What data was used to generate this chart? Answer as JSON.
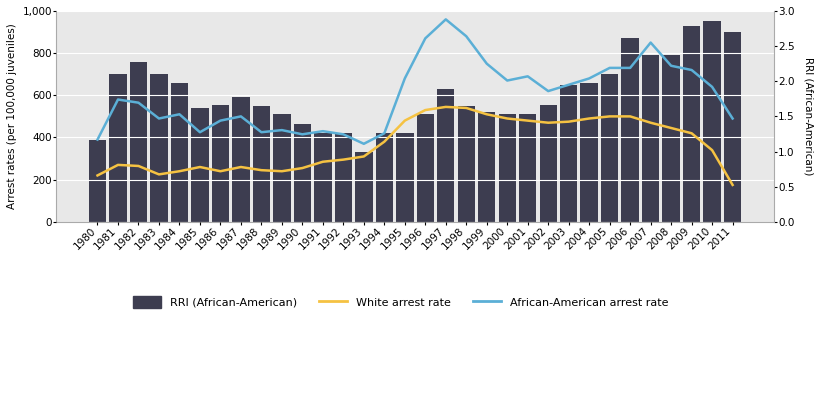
{
  "years": [
    1980,
    1981,
    1982,
    1983,
    1984,
    1985,
    1986,
    1987,
    1988,
    1989,
    1990,
    1991,
    1992,
    1993,
    1994,
    1995,
    1996,
    1997,
    1998,
    1999,
    2000,
    2001,
    2002,
    2003,
    2004,
    2005,
    2006,
    2007,
    2008,
    2009,
    2010,
    2011
  ],
  "rri_bars": [
    390,
    700,
    760,
    700,
    660,
    540,
    555,
    590,
    550,
    510,
    465,
    420,
    420,
    330,
    420,
    420,
    510,
    630,
    550,
    520,
    510,
    510,
    555,
    650,
    660,
    700,
    870,
    790,
    790,
    930,
    950,
    900
  ],
  "white_arrest_rate": [
    220,
    270,
    265,
    225,
    240,
    260,
    240,
    260,
    245,
    240,
    255,
    285,
    295,
    310,
    380,
    480,
    530,
    545,
    540,
    510,
    490,
    480,
    470,
    475,
    490,
    500,
    500,
    470,
    445,
    420,
    340,
    175
  ],
  "aa_arrest_rate": [
    390,
    580,
    565,
    490,
    510,
    425,
    480,
    500,
    425,
    435,
    415,
    430,
    415,
    370,
    420,
    680,
    870,
    960,
    880,
    750,
    670,
    690,
    620,
    650,
    680,
    730,
    730,
    850,
    740,
    720,
    640,
    490
  ],
  "bar_color": "#3d3d50",
  "white_line_color": "#f5c242",
  "aa_line_color": "#5bafd6",
  "ylabel_left": "Arrest rates (per 100,000 juveniles)",
  "ylabel_right": "RRI (African-American)",
  "ylim_left": [
    0,
    1000
  ],
  "ylim_right": [
    0.0,
    3.0
  ],
  "yticks_left": [
    0,
    200,
    400,
    600,
    800,
    1000
  ],
  "yticks_right": [
    0.0,
    0.5,
    1.0,
    1.5,
    2.0,
    2.5,
    3.0
  ],
  "legend_labels": [
    "RRI (African-American)",
    "White arrest rate",
    "African-American arrest rate"
  ],
  "bg_color": "#e8e8e8",
  "grid_color": "#ffffff",
  "figure_bg": "#ffffff"
}
